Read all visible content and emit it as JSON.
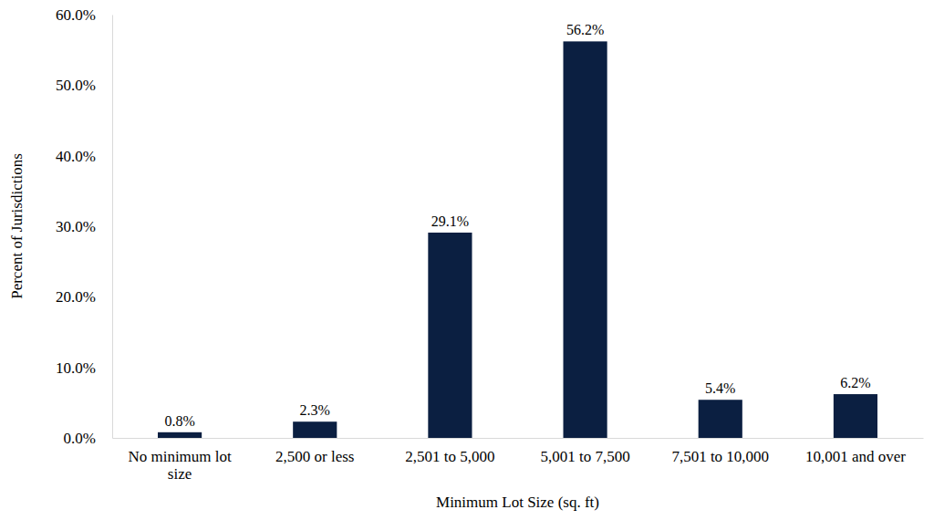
{
  "chart_data": {
    "type": "bar",
    "x_label": "Minimum Lot Size (sq. ft)",
    "y_label": "Percent of Jurisdictions",
    "categories": [
      "No minimum lot size",
      "2,500 or less",
      "2,501 to 5,000",
      "5,001 to 7,500",
      "7,501 to 10,000",
      "10,001 and over"
    ],
    "values": [
      0.8,
      2.3,
      29.1,
      56.2,
      5.4,
      6.2
    ],
    "value_labels": [
      "0.8%",
      "2.3%",
      "29.1%",
      "56.2%",
      "5.4%",
      "6.2%"
    ],
    "data_labels": true,
    "color": "#0b1f41",
    "ylim": [
      0,
      60
    ],
    "yticks": [
      {
        "value": 0,
        "label": "0.0%"
      },
      {
        "value": 10,
        "label": "10.0%"
      },
      {
        "value": 20,
        "label": "20.0%"
      },
      {
        "value": 30,
        "label": "30.0%"
      },
      {
        "value": 40,
        "label": "40.0%"
      },
      {
        "value": 50,
        "label": "50.0%"
      },
      {
        "value": 60,
        "label": "60.0%"
      }
    ],
    "grid": false
  }
}
